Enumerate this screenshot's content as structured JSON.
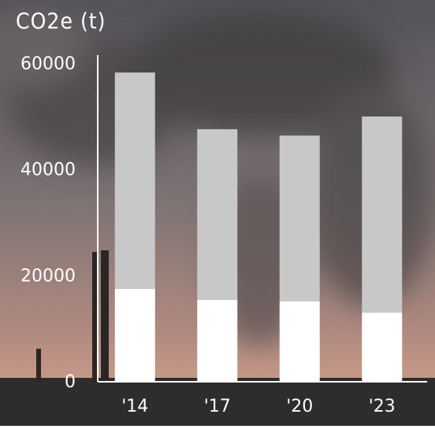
{
  "chart_data": {
    "type": "stacked-bar",
    "title": "CO2e (t)",
    "categories": [
      "'14",
      "'17",
      "'20",
      "'23"
    ],
    "series": [
      {
        "color": "#ffffff",
        "values": [
          17400,
          15300,
          15000,
          12900
        ]
      },
      {
        "color": "#c8c8c8",
        "values": [
          40800,
          32200,
          31300,
          37000
        ]
      }
    ],
    "ylim": [
      0,
      60000
    ],
    "yticks": [
      0,
      20000,
      40000,
      60000
    ],
    "grid": false
  }
}
